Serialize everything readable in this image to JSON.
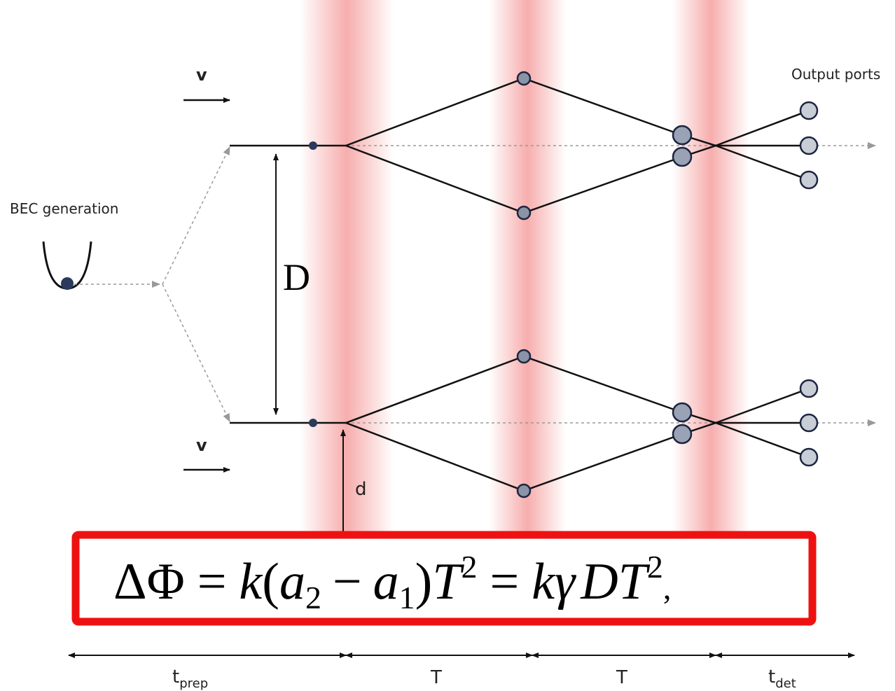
{
  "labels": {
    "velocity_top": "v",
    "velocity_bottom": "v",
    "output_ports": "Output ports",
    "bec_generation": "BEC generation",
    "separation": "D",
    "laser_distance": "d"
  },
  "formula": {
    "lhs": "ΔΦ",
    "eq1": "=",
    "k1": "k",
    "open": "(",
    "a2": "a",
    "a2_sub": "2",
    "minus": "−",
    "a1": "a",
    "a1_sub": "1",
    "close": ")",
    "T1": "T",
    "T1_sup": "2",
    "eq2": "=",
    "k2": "k",
    "gamma": "γ",
    "D": "D",
    "T2": "T",
    "T2_sup": "2",
    "tail": ","
  },
  "timeline": {
    "t_prep": {
      "main": "t",
      "sub": "prep"
    },
    "T_first": "T",
    "T_second": "T",
    "t_det": {
      "main": "t",
      "sub": "det"
    }
  },
  "colors": {
    "laser_beam": "#f06a6a",
    "highlight_box": "#ee1111",
    "atom_fill": "#2a3a5c",
    "port_fill": "#c9ced6",
    "path_line": "#111111",
    "dotted_line": "#999999"
  }
}
